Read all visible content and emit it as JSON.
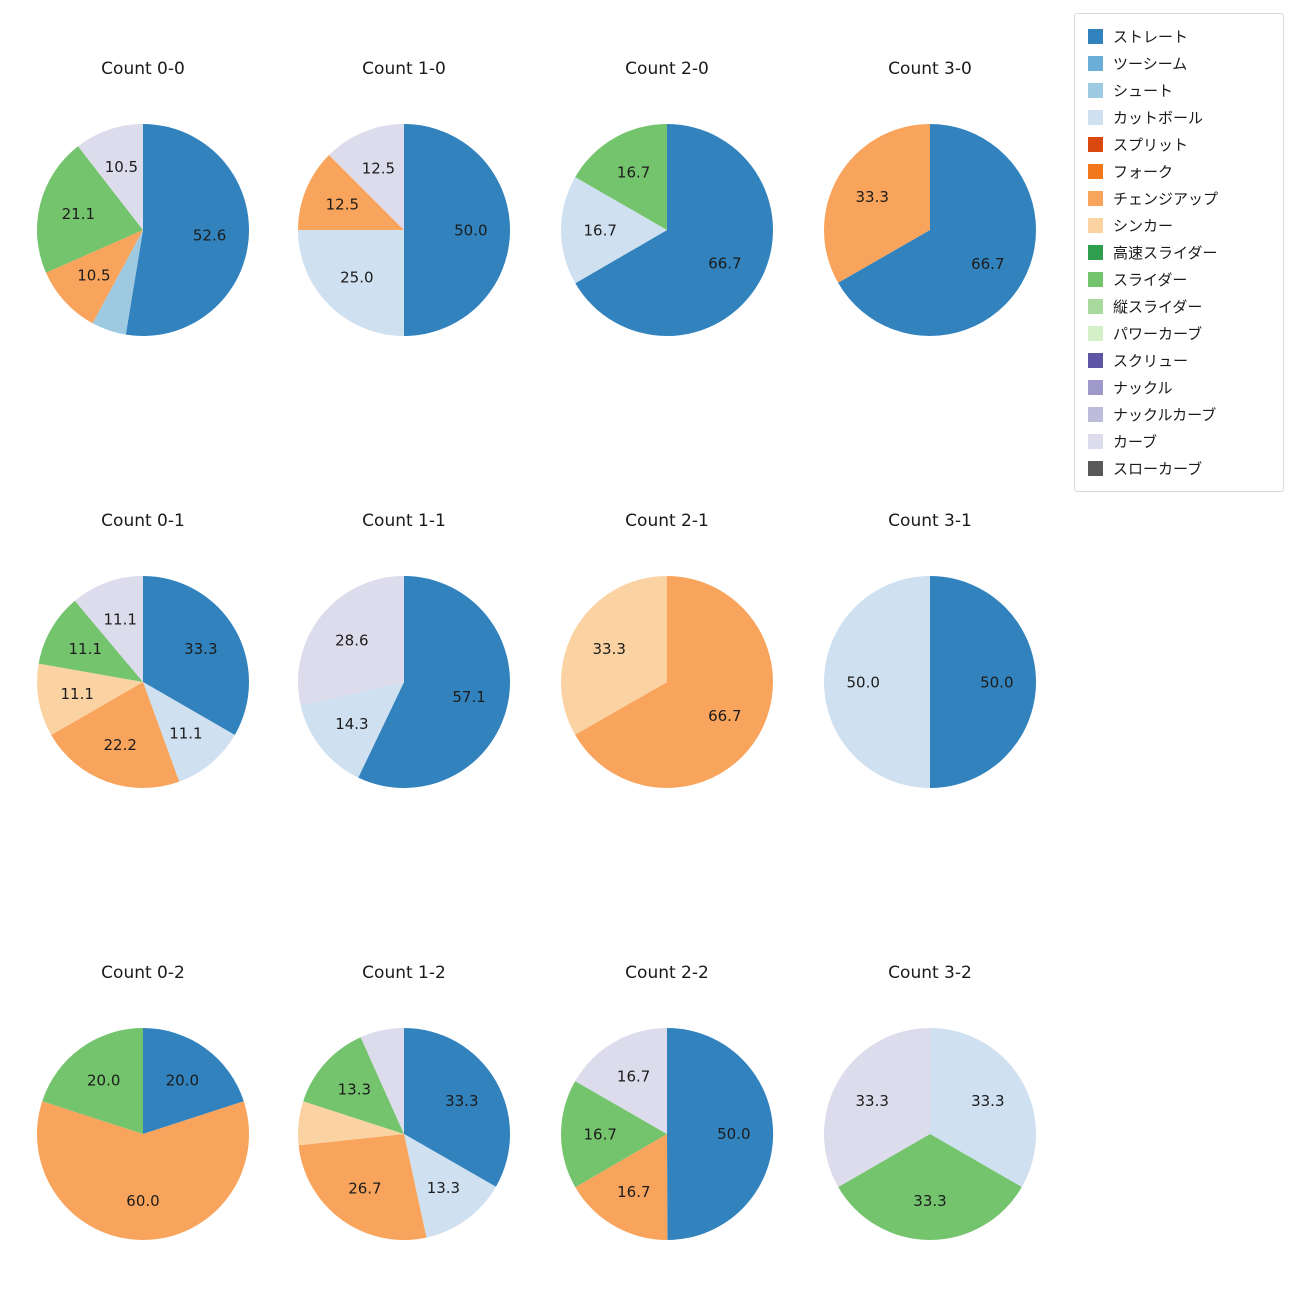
{
  "legend": {
    "items": [
      {
        "label": "ストレート",
        "color": "#3182bd"
      },
      {
        "label": "ツーシーム",
        "color": "#6baed6"
      },
      {
        "label": "シュート",
        "color": "#9ecae1"
      },
      {
        "label": "カットボール",
        "color": "#cfe0f1"
      },
      {
        "label": "スプリット",
        "color": "#d9480f"
      },
      {
        "label": "フォーク",
        "color": "#f2781b"
      },
      {
        "label": "チェンジアップ",
        "color": "#f9a45c"
      },
      {
        "label": "シンカー",
        "color": "#fbd3a2"
      },
      {
        "label": "高速スライダー",
        "color": "#2f9e4f"
      },
      {
        "label": "スライダー",
        "color": "#74c36d"
      },
      {
        "label": "縦スライダー",
        "color": "#a8daa0"
      },
      {
        "label": "パワーカーブ",
        "color": "#d4f0c8"
      },
      {
        "label": "スクリュー",
        "color": "#5f55a5"
      },
      {
        "label": "ナックル",
        "color": "#9e99c8"
      },
      {
        "label": "ナックルカーブ",
        "color": "#bdbddb"
      },
      {
        "label": "カーブ",
        "color": "#dcdcec"
      },
      {
        "label": "スローカーブ",
        "color": "#595959"
      }
    ]
  },
  "chart_data": [
    {
      "type": "pie",
      "title": "Count 0-0",
      "slices": [
        {
          "pitch": "ストレート",
          "value": 52.6,
          "label": "52.6"
        },
        {
          "pitch": "シュート",
          "value": 5.3,
          "label": ""
        },
        {
          "pitch": "チェンジアップ",
          "value": 10.5,
          "label": "10.5"
        },
        {
          "pitch": "スライダー",
          "value": 21.1,
          "label": "21.1"
        },
        {
          "pitch": "カーブ",
          "value": 10.5,
          "label": "10.5"
        }
      ]
    },
    {
      "type": "pie",
      "title": "Count 1-0",
      "slices": [
        {
          "pitch": "ストレート",
          "value": 50.0,
          "label": "50.0"
        },
        {
          "pitch": "カットボール",
          "value": 25.0,
          "label": "25.0"
        },
        {
          "pitch": "チェンジアップ",
          "value": 12.5,
          "label": "12.5"
        },
        {
          "pitch": "カーブ",
          "value": 12.5,
          "label": "12.5"
        }
      ]
    },
    {
      "type": "pie",
      "title": "Count 2-0",
      "slices": [
        {
          "pitch": "ストレート",
          "value": 66.7,
          "label": "66.7"
        },
        {
          "pitch": "カットボール",
          "value": 16.7,
          "label": "16.7"
        },
        {
          "pitch": "スライダー",
          "value": 16.7,
          "label": "16.7"
        }
      ]
    },
    {
      "type": "pie",
      "title": "Count 3-0",
      "slices": [
        {
          "pitch": "ストレート",
          "value": 66.7,
          "label": "66.7"
        },
        {
          "pitch": "チェンジアップ",
          "value": 33.3,
          "label": "33.3"
        }
      ]
    },
    {
      "type": "pie",
      "title": "Count 0-1",
      "slices": [
        {
          "pitch": "ストレート",
          "value": 33.3,
          "label": "33.3"
        },
        {
          "pitch": "カットボール",
          "value": 11.1,
          "label": "11.1"
        },
        {
          "pitch": "チェンジアップ",
          "value": 22.2,
          "label": "22.2"
        },
        {
          "pitch": "シンカー",
          "value": 11.1,
          "label": "11.1"
        },
        {
          "pitch": "スライダー",
          "value": 11.1,
          "label": "11.1"
        },
        {
          "pitch": "カーブ",
          "value": 11.1,
          "label": "11.1"
        }
      ]
    },
    {
      "type": "pie",
      "title": "Count 1-1",
      "slices": [
        {
          "pitch": "ストレート",
          "value": 57.1,
          "label": "57.1"
        },
        {
          "pitch": "カットボール",
          "value": 14.3,
          "label": "14.3"
        },
        {
          "pitch": "カーブ",
          "value": 28.6,
          "label": "28.6"
        }
      ]
    },
    {
      "type": "pie",
      "title": "Count 2-1",
      "slices": [
        {
          "pitch": "チェンジアップ",
          "value": 66.7,
          "label": "66.7"
        },
        {
          "pitch": "シンカー",
          "value": 33.3,
          "label": "33.3"
        }
      ]
    },
    {
      "type": "pie",
      "title": "Count 3-1",
      "slices": [
        {
          "pitch": "ストレート",
          "value": 50.0,
          "label": "50.0"
        },
        {
          "pitch": "カットボール",
          "value": 50.0,
          "label": "50.0"
        }
      ]
    },
    {
      "type": "pie",
      "title": "Count 0-2",
      "slices": [
        {
          "pitch": "ストレート",
          "value": 20.0,
          "label": "20.0"
        },
        {
          "pitch": "チェンジアップ",
          "value": 60.0,
          "label": "60.0"
        },
        {
          "pitch": "スライダー",
          "value": 20.0,
          "label": "20.0"
        }
      ]
    },
    {
      "type": "pie",
      "title": "Count 1-2",
      "slices": [
        {
          "pitch": "ストレート",
          "value": 33.3,
          "label": "33.3"
        },
        {
          "pitch": "カットボール",
          "value": 13.3,
          "label": "13.3"
        },
        {
          "pitch": "チェンジアップ",
          "value": 26.7,
          "label": "26.7"
        },
        {
          "pitch": "シンカー",
          "value": 6.7,
          "label": ""
        },
        {
          "pitch": "スライダー",
          "value": 13.3,
          "label": "13.3"
        },
        {
          "pitch": "カーブ",
          "value": 6.7,
          "label": ""
        }
      ]
    },
    {
      "type": "pie",
      "title": "Count 2-2",
      "slices": [
        {
          "pitch": "ストレート",
          "value": 50.0,
          "label": "50.0"
        },
        {
          "pitch": "チェンジアップ",
          "value": 16.7,
          "label": "16.7"
        },
        {
          "pitch": "スライダー",
          "value": 16.7,
          "label": "16.7"
        },
        {
          "pitch": "カーブ",
          "value": 16.7,
          "label": "16.7"
        }
      ]
    },
    {
      "type": "pie",
      "title": "Count 3-2",
      "slices": [
        {
          "pitch": "カットボール",
          "value": 33.3,
          "label": "33.3"
        },
        {
          "pitch": "スライダー",
          "value": 33.3,
          "label": "33.3"
        },
        {
          "pitch": "カーブ",
          "value": 33.3,
          "label": "33.3"
        }
      ]
    }
  ]
}
